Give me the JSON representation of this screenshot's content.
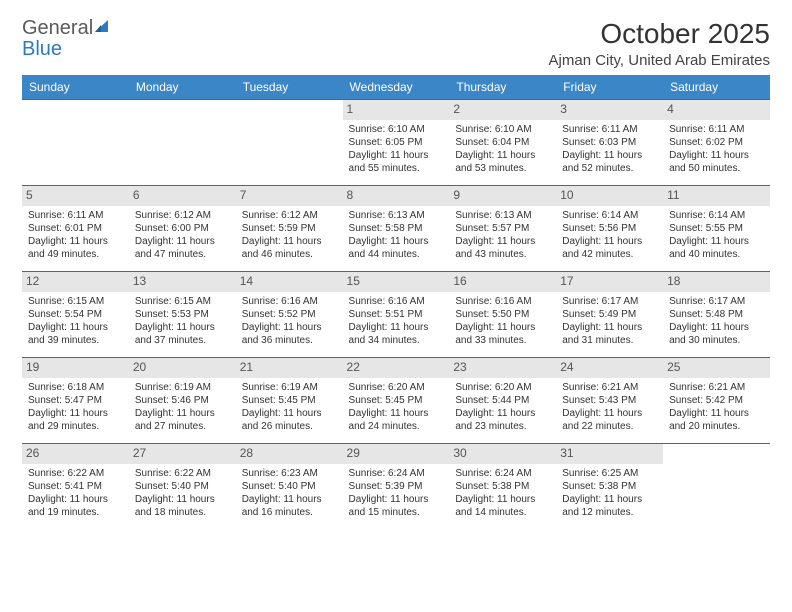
{
  "logo": {
    "part1": "General",
    "part2": "Blue"
  },
  "title": "October 2025",
  "location": "Ajman City, United Arab Emirates",
  "colors": {
    "header_bg": "#3b86c6",
    "header_text": "#ffffff",
    "row_border": "#2f6fa8",
    "daynum_bg": "#e6e6e6",
    "logo_gray": "#5a5a5a",
    "logo_blue": "#2f7abf"
  },
  "weekdays": [
    "Sunday",
    "Monday",
    "Tuesday",
    "Wednesday",
    "Thursday",
    "Friday",
    "Saturday"
  ],
  "weeks": [
    [
      {
        "empty": true
      },
      {
        "empty": true
      },
      {
        "empty": true
      },
      {
        "day": "1",
        "sunrise": "Sunrise: 6:10 AM",
        "sunset": "Sunset: 6:05 PM",
        "d1": "Daylight: 11 hours",
        "d2": "and 55 minutes."
      },
      {
        "day": "2",
        "sunrise": "Sunrise: 6:10 AM",
        "sunset": "Sunset: 6:04 PM",
        "d1": "Daylight: 11 hours",
        "d2": "and 53 minutes."
      },
      {
        "day": "3",
        "sunrise": "Sunrise: 6:11 AM",
        "sunset": "Sunset: 6:03 PM",
        "d1": "Daylight: 11 hours",
        "d2": "and 52 minutes."
      },
      {
        "day": "4",
        "sunrise": "Sunrise: 6:11 AM",
        "sunset": "Sunset: 6:02 PM",
        "d1": "Daylight: 11 hours",
        "d2": "and 50 minutes."
      }
    ],
    [
      {
        "day": "5",
        "sunrise": "Sunrise: 6:11 AM",
        "sunset": "Sunset: 6:01 PM",
        "d1": "Daylight: 11 hours",
        "d2": "and 49 minutes."
      },
      {
        "day": "6",
        "sunrise": "Sunrise: 6:12 AM",
        "sunset": "Sunset: 6:00 PM",
        "d1": "Daylight: 11 hours",
        "d2": "and 47 minutes."
      },
      {
        "day": "7",
        "sunrise": "Sunrise: 6:12 AM",
        "sunset": "Sunset: 5:59 PM",
        "d1": "Daylight: 11 hours",
        "d2": "and 46 minutes."
      },
      {
        "day": "8",
        "sunrise": "Sunrise: 6:13 AM",
        "sunset": "Sunset: 5:58 PM",
        "d1": "Daylight: 11 hours",
        "d2": "and 44 minutes."
      },
      {
        "day": "9",
        "sunrise": "Sunrise: 6:13 AM",
        "sunset": "Sunset: 5:57 PM",
        "d1": "Daylight: 11 hours",
        "d2": "and 43 minutes."
      },
      {
        "day": "10",
        "sunrise": "Sunrise: 6:14 AM",
        "sunset": "Sunset: 5:56 PM",
        "d1": "Daylight: 11 hours",
        "d2": "and 42 minutes."
      },
      {
        "day": "11",
        "sunrise": "Sunrise: 6:14 AM",
        "sunset": "Sunset: 5:55 PM",
        "d1": "Daylight: 11 hours",
        "d2": "and 40 minutes."
      }
    ],
    [
      {
        "day": "12",
        "sunrise": "Sunrise: 6:15 AM",
        "sunset": "Sunset: 5:54 PM",
        "d1": "Daylight: 11 hours",
        "d2": "and 39 minutes."
      },
      {
        "day": "13",
        "sunrise": "Sunrise: 6:15 AM",
        "sunset": "Sunset: 5:53 PM",
        "d1": "Daylight: 11 hours",
        "d2": "and 37 minutes."
      },
      {
        "day": "14",
        "sunrise": "Sunrise: 6:16 AM",
        "sunset": "Sunset: 5:52 PM",
        "d1": "Daylight: 11 hours",
        "d2": "and 36 minutes."
      },
      {
        "day": "15",
        "sunrise": "Sunrise: 6:16 AM",
        "sunset": "Sunset: 5:51 PM",
        "d1": "Daylight: 11 hours",
        "d2": "and 34 minutes."
      },
      {
        "day": "16",
        "sunrise": "Sunrise: 6:16 AM",
        "sunset": "Sunset: 5:50 PM",
        "d1": "Daylight: 11 hours",
        "d2": "and 33 minutes."
      },
      {
        "day": "17",
        "sunrise": "Sunrise: 6:17 AM",
        "sunset": "Sunset: 5:49 PM",
        "d1": "Daylight: 11 hours",
        "d2": "and 31 minutes."
      },
      {
        "day": "18",
        "sunrise": "Sunrise: 6:17 AM",
        "sunset": "Sunset: 5:48 PM",
        "d1": "Daylight: 11 hours",
        "d2": "and 30 minutes."
      }
    ],
    [
      {
        "day": "19",
        "sunrise": "Sunrise: 6:18 AM",
        "sunset": "Sunset: 5:47 PM",
        "d1": "Daylight: 11 hours",
        "d2": "and 29 minutes."
      },
      {
        "day": "20",
        "sunrise": "Sunrise: 6:19 AM",
        "sunset": "Sunset: 5:46 PM",
        "d1": "Daylight: 11 hours",
        "d2": "and 27 minutes."
      },
      {
        "day": "21",
        "sunrise": "Sunrise: 6:19 AM",
        "sunset": "Sunset: 5:45 PM",
        "d1": "Daylight: 11 hours",
        "d2": "and 26 minutes."
      },
      {
        "day": "22",
        "sunrise": "Sunrise: 6:20 AM",
        "sunset": "Sunset: 5:45 PM",
        "d1": "Daylight: 11 hours",
        "d2": "and 24 minutes."
      },
      {
        "day": "23",
        "sunrise": "Sunrise: 6:20 AM",
        "sunset": "Sunset: 5:44 PM",
        "d1": "Daylight: 11 hours",
        "d2": "and 23 minutes."
      },
      {
        "day": "24",
        "sunrise": "Sunrise: 6:21 AM",
        "sunset": "Sunset: 5:43 PM",
        "d1": "Daylight: 11 hours",
        "d2": "and 22 minutes."
      },
      {
        "day": "25",
        "sunrise": "Sunrise: 6:21 AM",
        "sunset": "Sunset: 5:42 PM",
        "d1": "Daylight: 11 hours",
        "d2": "and 20 minutes."
      }
    ],
    [
      {
        "day": "26",
        "sunrise": "Sunrise: 6:22 AM",
        "sunset": "Sunset: 5:41 PM",
        "d1": "Daylight: 11 hours",
        "d2": "and 19 minutes."
      },
      {
        "day": "27",
        "sunrise": "Sunrise: 6:22 AM",
        "sunset": "Sunset: 5:40 PM",
        "d1": "Daylight: 11 hours",
        "d2": "and 18 minutes."
      },
      {
        "day": "28",
        "sunrise": "Sunrise: 6:23 AM",
        "sunset": "Sunset: 5:40 PM",
        "d1": "Daylight: 11 hours",
        "d2": "and 16 minutes."
      },
      {
        "day": "29",
        "sunrise": "Sunrise: 6:24 AM",
        "sunset": "Sunset: 5:39 PM",
        "d1": "Daylight: 11 hours",
        "d2": "and 15 minutes."
      },
      {
        "day": "30",
        "sunrise": "Sunrise: 6:24 AM",
        "sunset": "Sunset: 5:38 PM",
        "d1": "Daylight: 11 hours",
        "d2": "and 14 minutes."
      },
      {
        "day": "31",
        "sunrise": "Sunrise: 6:25 AM",
        "sunset": "Sunset: 5:38 PM",
        "d1": "Daylight: 11 hours",
        "d2": "and 12 minutes."
      },
      {
        "empty": true
      }
    ]
  ]
}
